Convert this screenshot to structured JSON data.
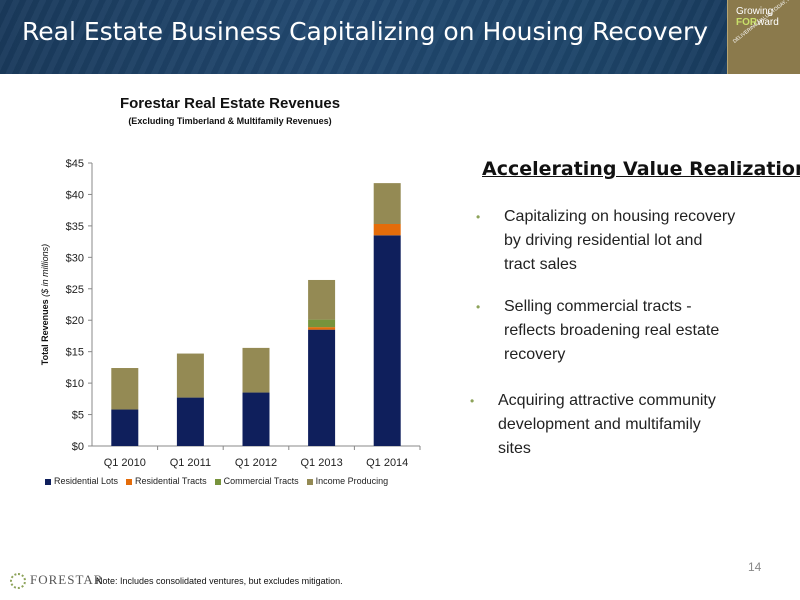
{
  "header": {
    "title": "Real Estate Business Capitalizing on Housing Recovery",
    "logo_line1": "Growing",
    "logo_line2_bold": "FOR",
    "logo_line2_rest": "ward",
    "logo_tagline": "DELIVERING VALUE TODAY, FOCUSING ON TOMORROW"
  },
  "chart_data": {
    "type": "bar",
    "stacked": true,
    "title": "Forestar Real Estate Revenues",
    "subtitle": "(Excluding Timberland & Multifamily Revenues)",
    "ylabel": "Total Revenues",
    "ylabel_unit": "($ in millions)",
    "categories": [
      "Q1 2010",
      "Q1 2011",
      "Q1  2012",
      "Q1 2013",
      "Q1 2014"
    ],
    "ylim": [
      0,
      45
    ],
    "yticks": [
      "$0",
      "$5",
      "$10",
      "$15",
      "$20",
      "$25",
      "$30",
      "$35",
      "$40",
      "$45"
    ],
    "grid": false,
    "legend_position": "bottom",
    "series": [
      {
        "name": "Residential Lots",
        "color": "#0f1f5c",
        "values": [
          5.8,
          7.7,
          8.5,
          18.5,
          33.5
        ]
      },
      {
        "name": "Residential Tracts",
        "color": "#e46c0a",
        "values": [
          0,
          0,
          0,
          0.4,
          1.8
        ]
      },
      {
        "name": "Commercial Tracts",
        "color": "#77933c",
        "values": [
          0,
          0,
          0,
          1.2,
          0
        ]
      },
      {
        "name": "Income Producing",
        "color": "#948a54",
        "values": [
          6.6,
          7.0,
          7.1,
          6.3,
          6.5
        ]
      }
    ]
  },
  "right": {
    "heading": "Accelerating Value Realization",
    "bullets": [
      {
        "lines": [
          "Capitalizing on housing recovery",
          "by driving residential lot and",
          "tract sales"
        ]
      },
      {
        "lines": [
          "Selling commercial tracts -",
          "reflects broadening real estate",
          "recovery"
        ]
      },
      {
        "lines": [
          "Acquiring attractive community",
          "development and multifamily",
          "sites"
        ]
      }
    ],
    "bullet_symbol": "•",
    "bullet_color": "#8da35a"
  },
  "footer": {
    "page_number": "14",
    "logo_text": "FORESTAR",
    "note": "Note: Includes consolidated ventures, but excludes mitigation."
  }
}
